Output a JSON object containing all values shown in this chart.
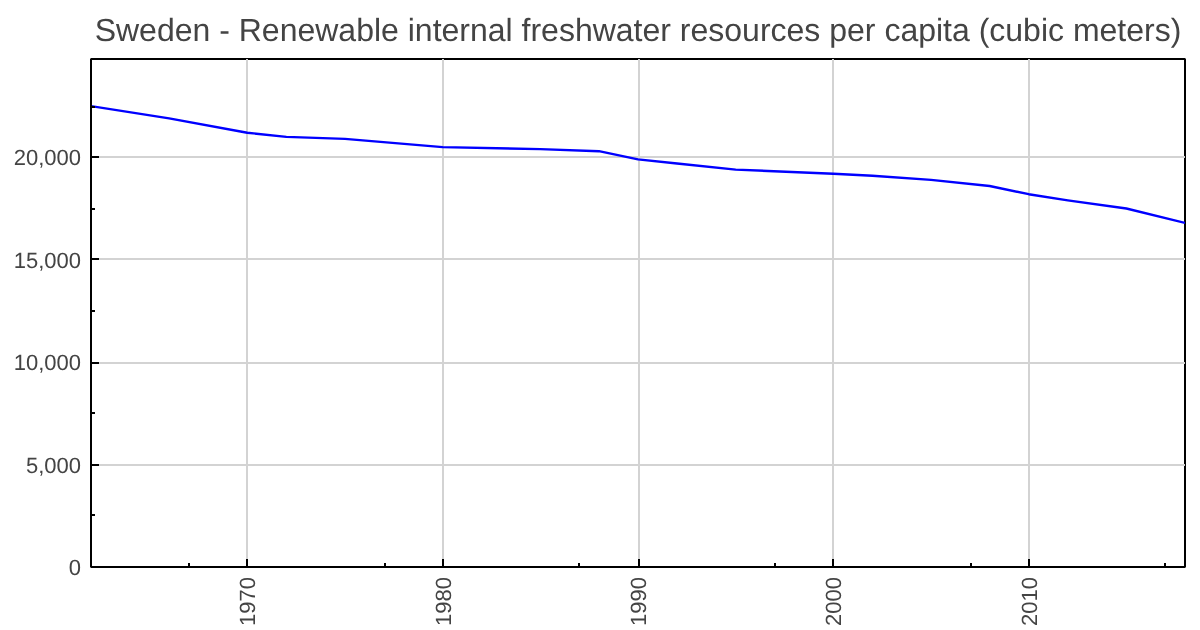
{
  "chart_data": {
    "type": "line",
    "title": "Sweden - Renewable internal freshwater resources per capita (cubic meters)",
    "x": [
      1962,
      1966,
      1970,
      1972,
      1975,
      1980,
      1985,
      1988,
      1990,
      1992,
      1995,
      2000,
      2002,
      2005,
      2008,
      2010,
      2012,
      2015,
      2018
    ],
    "series": [
      {
        "color": "#0000ff",
        "values": [
          22500,
          21900,
          21200,
          21000,
          20900,
          20500,
          20400,
          20300,
          19900,
          19700,
          19400,
          19200,
          19100,
          18900,
          18600,
          18200,
          17900,
          17500,
          16800
        ]
      }
    ],
    "xlim": [
      1962,
      2018
    ],
    "xticks": [
      1970,
      1980,
      1990,
      2000,
      2010
    ],
    "ylim": [
      0,
      24800
    ],
    "yticks": [
      {
        "value": 0,
        "label": "0"
      },
      {
        "value": 5000,
        "label": "5,000"
      },
      {
        "value": 10000,
        "label": "10,000"
      },
      {
        "value": 15000,
        "label": "15,000"
      },
      {
        "value": 20000,
        "label": "20,000"
      }
    ],
    "grid": true,
    "marker": "none",
    "line_style": "solid"
  }
}
